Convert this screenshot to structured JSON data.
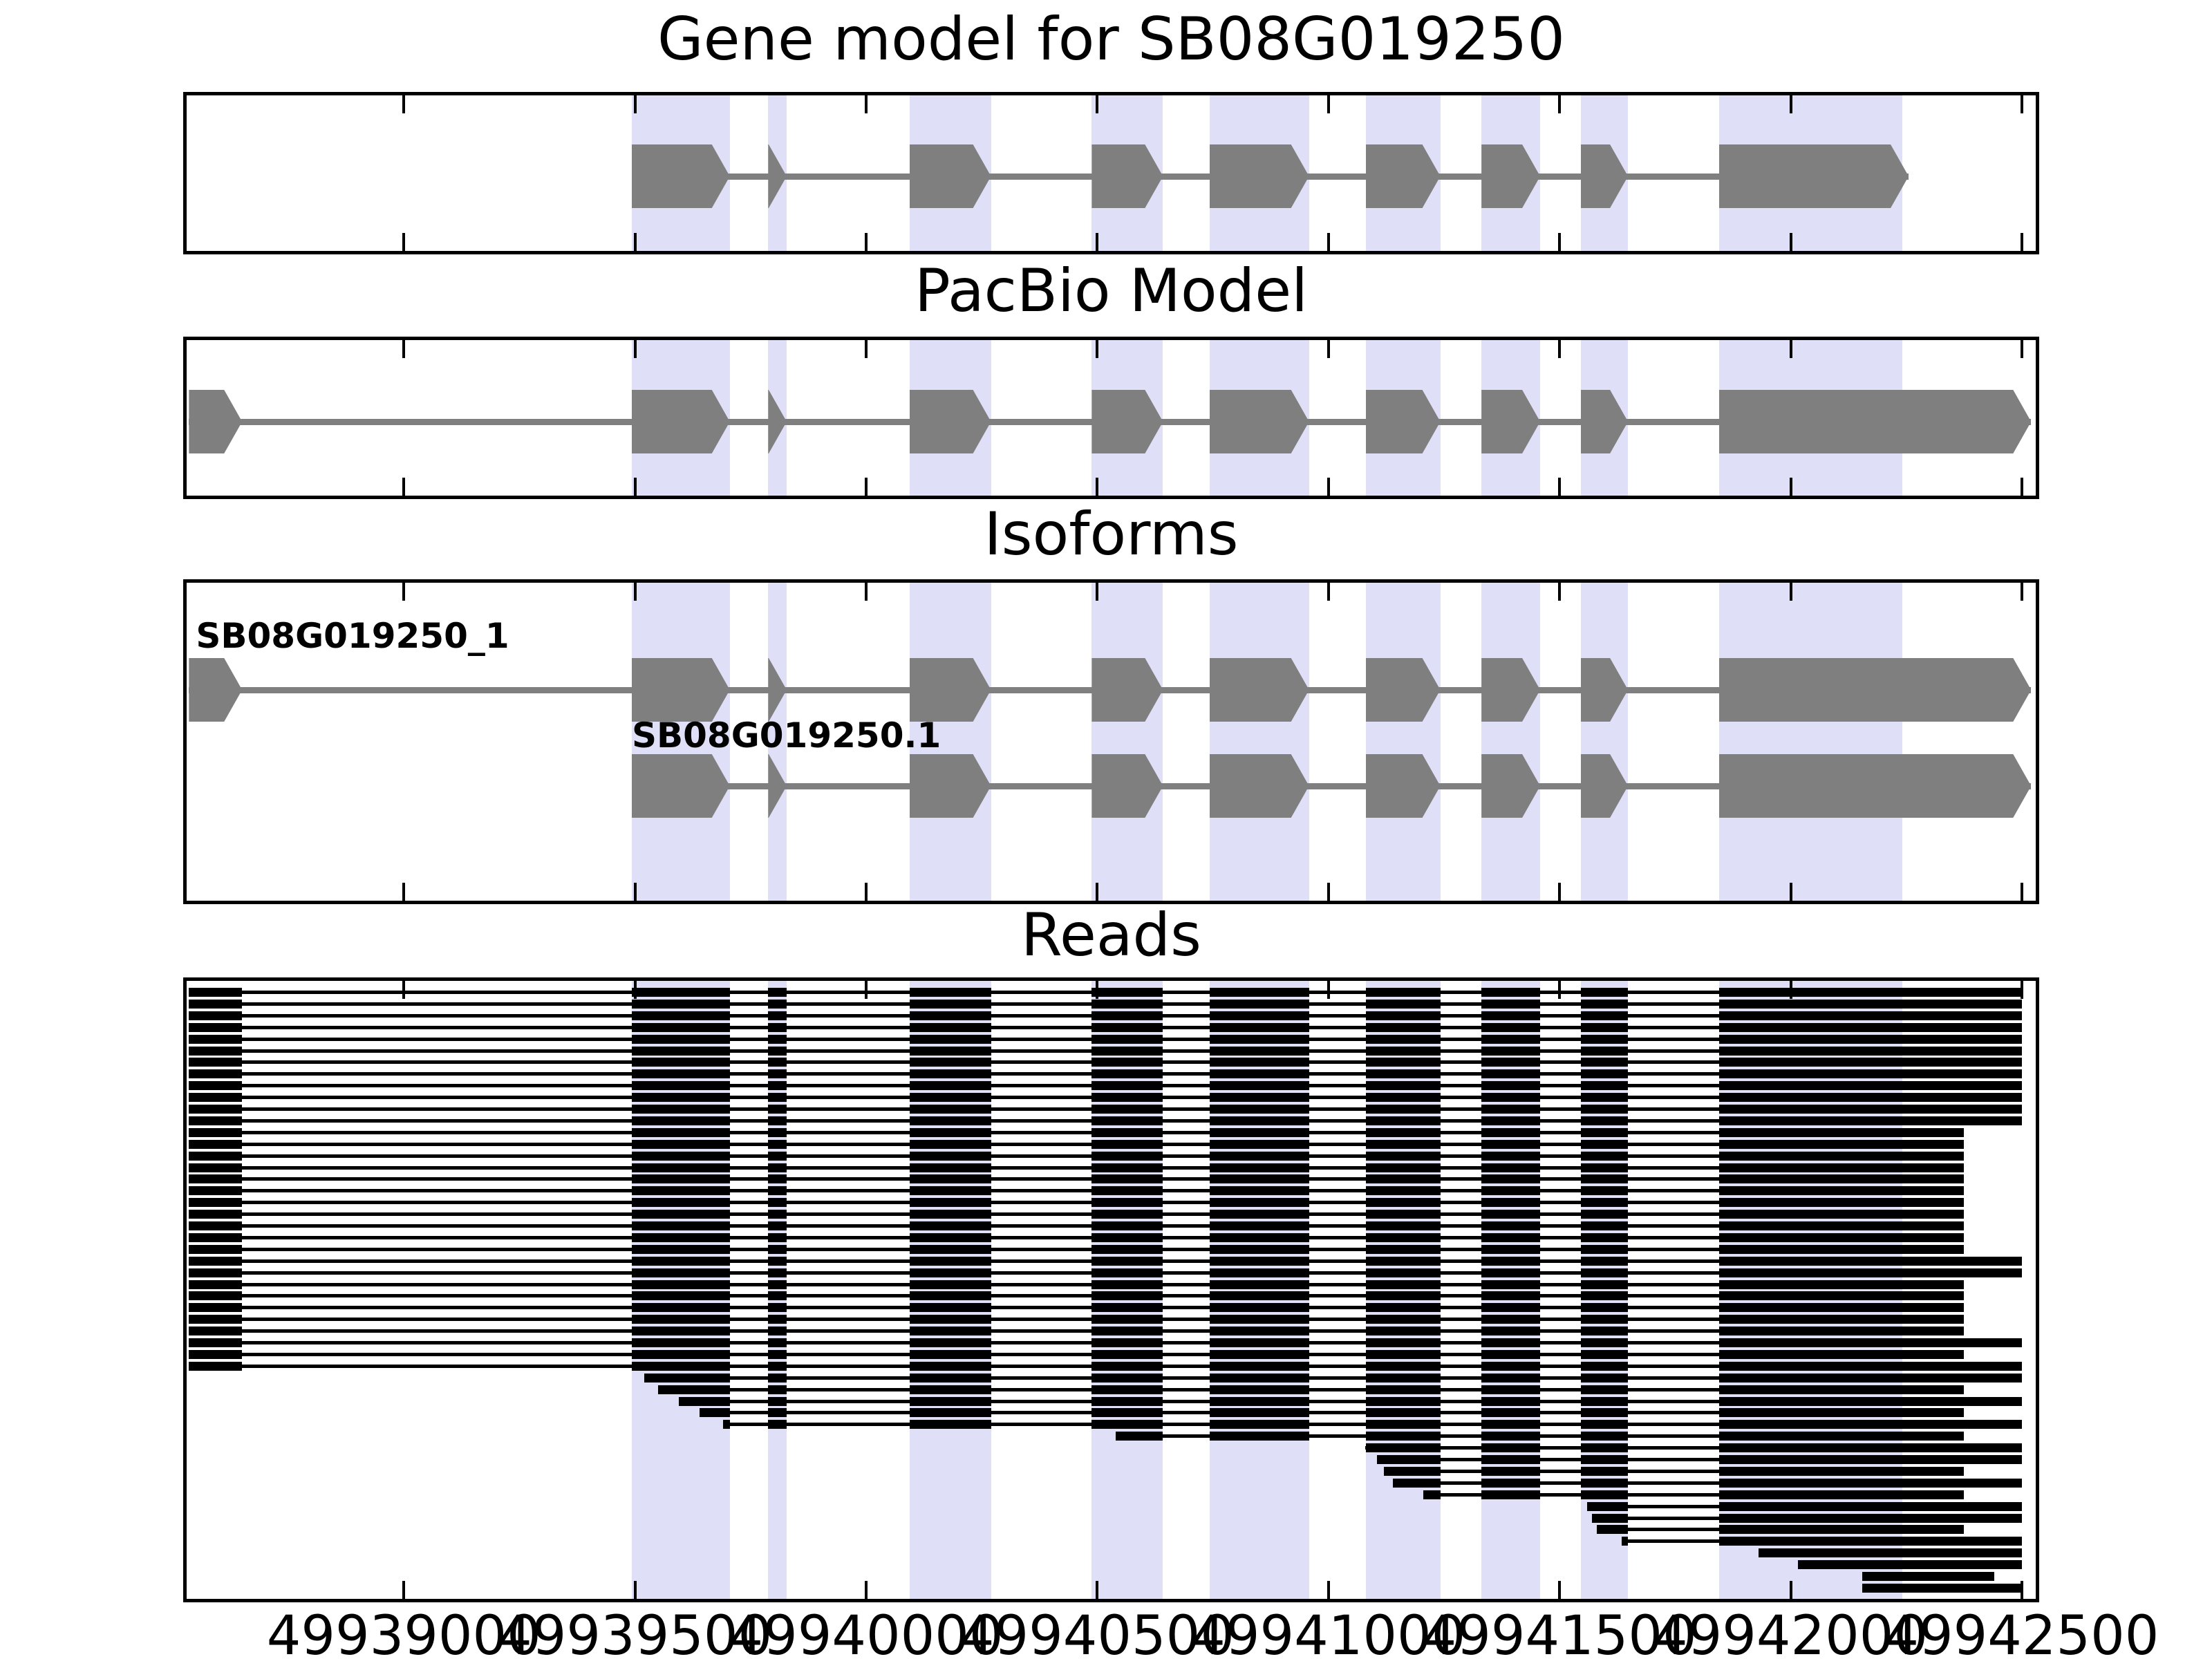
{
  "chart_data": {
    "type": "genomic-gene-model-tracks",
    "title": "Gene model for SB08G019250",
    "x_axis": {
      "range_bp": [
        49938530,
        49942530
      ],
      "tick_values": [
        49939000,
        49939500,
        49940000,
        49940500,
        49941000,
        49941500,
        49942000,
        49942500
      ],
      "tick_labels": [
        "49939000",
        "49939500",
        "49940000",
        "49940500",
        "49941000",
        "49941500",
        "49942000",
        "49942500"
      ]
    },
    "highlight_bands_bp": [
      [
        49939493,
        49939705
      ],
      [
        49939788,
        49939828
      ],
      [
        49940094,
        49940270
      ],
      [
        49940488,
        49940642
      ],
      [
        49940743,
        49940958
      ],
      [
        49941081,
        49941242
      ],
      [
        49941331,
        49941458
      ],
      [
        49941546,
        49941648
      ],
      [
        49941845,
        49942242
      ]
    ],
    "tracks": [
      {
        "name": "Gene model for SB08G019250",
        "kind": "model",
        "rows": [
          {
            "label": "",
            "exons": [
              [
                49939493,
                49939705
              ],
              [
                49939788,
                49939828
              ],
              [
                49940094,
                49940270
              ],
              [
                49940488,
                49940642
              ],
              [
                49940743,
                49940958
              ],
              [
                49941081,
                49941242
              ],
              [
                49941331,
                49941458
              ],
              [
                49941546,
                49941648
              ],
              [
                49941845,
                49942255
              ]
            ]
          }
        ]
      },
      {
        "name": "PacBio Model",
        "kind": "model",
        "rows": [
          {
            "label": "",
            "exons": [
              [
                49938535,
                49938650
              ],
              [
                49939493,
                49939705
              ],
              [
                49939788,
                49939828
              ],
              [
                49940094,
                49940270
              ],
              [
                49940488,
                49940642
              ],
              [
                49940743,
                49940958
              ],
              [
                49941081,
                49941242
              ],
              [
                49941331,
                49941458
              ],
              [
                49941546,
                49941648
              ],
              [
                49941845,
                49942520
              ]
            ]
          }
        ]
      },
      {
        "name": "Isoforms",
        "kind": "model",
        "rows": [
          {
            "label": "SB08G019250_1",
            "exons": [
              [
                49938535,
                49938650
              ],
              [
                49939493,
                49939705
              ],
              [
                49939788,
                49939828
              ],
              [
                49940094,
                49940270
              ],
              [
                49940488,
                49940642
              ],
              [
                49940743,
                49940958
              ],
              [
                49941081,
                49941242
              ],
              [
                49941331,
                49941458
              ],
              [
                49941546,
                49941648
              ],
              [
                49941845,
                49942520
              ]
            ]
          },
          {
            "label": "SB08G019250.1",
            "exons": [
              [
                49939493,
                49939705
              ],
              [
                49939788,
                49939828
              ],
              [
                49940094,
                49940270
              ],
              [
                49940488,
                49940642
              ],
              [
                49940743,
                49940958
              ],
              [
                49941081,
                49941242
              ],
              [
                49941331,
                49941458
              ],
              [
                49941546,
                49941648
              ],
              [
                49941845,
                49942520
              ]
            ]
          }
        ]
      },
      {
        "name": "Reads",
        "kind": "reads",
        "read_exon_bands_bp": [
          [
            49938535,
            49938650
          ],
          [
            49939493,
            49939705
          ],
          [
            49939788,
            49939828
          ],
          [
            49940094,
            49940270
          ],
          [
            49940488,
            49940642
          ],
          [
            49940743,
            49940958
          ],
          [
            49941081,
            49941242
          ],
          [
            49941331,
            49941458
          ],
          [
            49941546,
            49941648
          ]
        ],
        "read_tail_exon_start_bp": 49941845,
        "read_extents_bp": [
          [
            49938535,
            49942500
          ],
          [
            49938535,
            49942500
          ],
          [
            49938535,
            49942500
          ],
          [
            49938535,
            49942500
          ],
          [
            49938535,
            49942500
          ],
          [
            49938535,
            49942500
          ],
          [
            49938535,
            49942500
          ],
          [
            49938535,
            49942500
          ],
          [
            49938535,
            49942500
          ],
          [
            49938535,
            49942500
          ],
          [
            49938535,
            49942500
          ],
          [
            49938535,
            49942500
          ],
          [
            49938535,
            49942375
          ],
          [
            49938535,
            49942375
          ],
          [
            49938535,
            49942375
          ],
          [
            49938535,
            49942375
          ],
          [
            49938535,
            49942375
          ],
          [
            49938535,
            49942375
          ],
          [
            49938535,
            49942375
          ],
          [
            49938535,
            49942375
          ],
          [
            49938535,
            49942375
          ],
          [
            49938535,
            49942375
          ],
          [
            49938535,
            49942375
          ],
          [
            49938535,
            49942500
          ],
          [
            49938535,
            49942500
          ],
          [
            49938535,
            49942375
          ],
          [
            49938535,
            49942375
          ],
          [
            49938535,
            49942375
          ],
          [
            49938535,
            49942375
          ],
          [
            49938535,
            49942375
          ],
          [
            49938535,
            49942500
          ],
          [
            49938535,
            49942375
          ],
          [
            49938535,
            49942500
          ],
          [
            49939520,
            49942500
          ],
          [
            49939550,
            49942375
          ],
          [
            49939595,
            49942500
          ],
          [
            49939640,
            49942375
          ],
          [
            49939690,
            49942500
          ],
          [
            49940540,
            49942375
          ],
          [
            49941080,
            49942500
          ],
          [
            49941105,
            49942500
          ],
          [
            49941120,
            49942375
          ],
          [
            49941140,
            49942500
          ],
          [
            49941205,
            49942375
          ],
          [
            49941560,
            49942500
          ],
          [
            49941570,
            49942500
          ],
          [
            49941580,
            49942375
          ],
          [
            49941635,
            49942500
          ],
          [
            49941930,
            49942500
          ],
          [
            49942015,
            49942500
          ],
          [
            49942155,
            49942440
          ],
          [
            49942155,
            49942500
          ]
        ]
      }
    ],
    "colors": {
      "exon_fill": "#7f7f7f",
      "intron_line": "#7f7f7f",
      "highlight_band": "#dfdff7",
      "read": "#000000",
      "axis": "#000000",
      "background": "#ffffff"
    }
  }
}
